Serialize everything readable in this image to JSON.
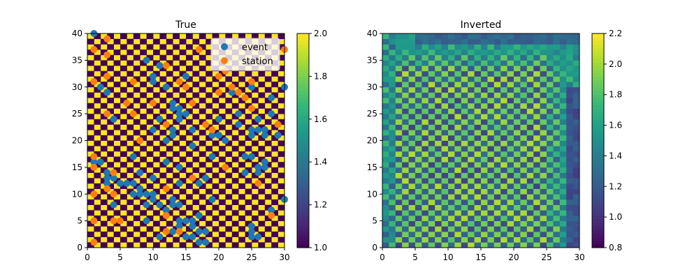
{
  "chart_data": [
    {
      "type": "heatmap",
      "title": "True",
      "xlim": [
        0,
        30
      ],
      "ylim": [
        0,
        40
      ],
      "xticks": [
        "0",
        "5",
        "10",
        "15",
        "20",
        "25",
        "30"
      ],
      "yticks": [
        "0",
        "5",
        "10",
        "15",
        "20",
        "25",
        "30",
        "35",
        "40"
      ],
      "grid": {
        "nx": 30,
        "ny": 40,
        "pattern": "checkerboard",
        "cell_size": 1,
        "values": [
          1.0,
          2.0
        ]
      },
      "colormap": "viridis",
      "colorbar": {
        "min": 1.0,
        "max": 2.0,
        "ticks": [
          "1.0",
          "1.2",
          "1.4",
          "1.6",
          "1.8",
          "2.0"
        ]
      },
      "legend": {
        "placement": "top-right",
        "entries": [
          "event",
          "station"
        ]
      },
      "series": [
        {
          "name": "event",
          "type": "scatter",
          "color": "#1f77b4",
          "points": [
            [
              1,
              40
            ],
            [
              2,
              30
            ],
            [
              3,
              29
            ],
            [
              3,
              13
            ],
            [
              3,
              14
            ],
            [
              4,
              24
            ],
            [
              4,
              13
            ],
            [
              2,
              16
            ],
            [
              1,
              16
            ],
            [
              3,
              12
            ],
            [
              4,
              8
            ],
            [
              5,
              12
            ],
            [
              6,
              12
            ],
            [
              7,
              10
            ],
            [
              7,
              12
            ],
            [
              8,
              14
            ],
            [
              8,
              10
            ],
            [
              8,
              11
            ],
            [
              9,
              35
            ],
            [
              9,
              10
            ],
            [
              9,
              8
            ],
            [
              10,
              31
            ],
            [
              10,
              32
            ],
            [
              10,
              22
            ],
            [
              10,
              13
            ],
            [
              10,
              9
            ],
            [
              10,
              10
            ],
            [
              11,
              34
            ],
            [
              11,
              24
            ],
            [
              11,
              2
            ],
            [
              11,
              8
            ],
            [
              12,
              30
            ],
            [
              12,
              16
            ],
            [
              12,
              6
            ],
            [
              12,
              7
            ],
            [
              13,
              22
            ],
            [
              13,
              26
            ],
            [
              13,
              27
            ],
            [
              13,
              21
            ],
            [
              13,
              8
            ],
            [
              13,
              9
            ],
            [
              13,
              3
            ],
            [
              14,
              24
            ],
            [
              14,
              26
            ],
            [
              14,
              25
            ],
            [
              14,
              15
            ],
            [
              14,
              12
            ],
            [
              14,
              5
            ],
            [
              14,
              4
            ],
            [
              14,
              8
            ],
            [
              15,
              25
            ],
            [
              15,
              32
            ],
            [
              15,
              5
            ],
            [
              15,
              2
            ],
            [
              16,
              22
            ],
            [
              16,
              19
            ],
            [
              16,
              5
            ],
            [
              16,
              4
            ],
            [
              16,
              2
            ],
            [
              17,
              12
            ],
            [
              17,
              6
            ],
            [
              17,
              3
            ],
            [
              17,
              1
            ],
            [
              18,
              1
            ],
            [
              18,
              3
            ],
            [
              19,
              9
            ],
            [
              19,
              21
            ],
            [
              19,
              17
            ],
            [
              20,
              24
            ],
            [
              21,
              20
            ],
            [
              21,
              15
            ],
            [
              22,
              29
            ],
            [
              23,
              25
            ],
            [
              23,
              23
            ],
            [
              24,
              14
            ],
            [
              24,
              17
            ],
            [
              24,
              28
            ],
            [
              25,
              22
            ],
            [
              25,
              21
            ],
            [
              25,
              17
            ],
            [
              25,
              4
            ],
            [
              25,
              2
            ],
            [
              25,
              3
            ],
            [
              26,
              24
            ],
            [
              26,
              22
            ],
            [
              26,
              15
            ],
            [
              26,
              14
            ],
            [
              26,
              2
            ],
            [
              27,
              22
            ],
            [
              27,
              21
            ],
            [
              27,
              16
            ],
            [
              27,
              15
            ],
            [
              28,
              28
            ],
            [
              28,
              7
            ],
            [
              28,
              25
            ],
            [
              29,
              21
            ],
            [
              30,
              30
            ],
            [
              30,
              9
            ],
            [
              7,
              17
            ],
            [
              20,
              21
            ],
            [
              12,
              20
            ],
            [
              18,
              13
            ],
            [
              25,
              30
            ],
            [
              9,
              5
            ]
          ]
        },
        {
          "name": "station",
          "type": "scatter",
          "color": "#ff7f0e",
          "points": [
            [
              1,
              37
            ],
            [
              1,
              31
            ],
            [
              1,
              17
            ],
            [
              1,
              15
            ],
            [
              1,
              10
            ],
            [
              1,
              5
            ],
            [
              1,
              1
            ],
            [
              3,
              39
            ],
            [
              3,
              36
            ],
            [
              3,
              32
            ],
            [
              3,
              25
            ],
            [
              3,
              11
            ],
            [
              4,
              14
            ],
            [
              4,
              10
            ],
            [
              4,
              5
            ],
            [
              5,
              5
            ],
            [
              6,
              27
            ],
            [
              7,
              31
            ],
            [
              7,
              25
            ],
            [
              8,
              20
            ],
            [
              10,
              27
            ],
            [
              12,
              34
            ],
            [
              12,
              23
            ],
            [
              12,
              11
            ],
            [
              12,
              6
            ],
            [
              12,
              3
            ],
            [
              14,
              31
            ],
            [
              14,
              3
            ],
            [
              15,
              30
            ],
            [
              16,
              27
            ],
            [
              17,
              37
            ],
            [
              18,
              23
            ],
            [
              19,
              22
            ],
            [
              20,
              29
            ],
            [
              20,
              32
            ],
            [
              21,
              33
            ],
            [
              21,
              15
            ],
            [
              22,
              30
            ],
            [
              23,
              29
            ],
            [
              24,
              28
            ],
            [
              25,
              31
            ],
            [
              25,
              26
            ],
            [
              26,
              12
            ],
            [
              28,
              6
            ],
            [
              29,
              23
            ],
            [
              30,
              37
            ],
            [
              16,
              13
            ]
          ]
        }
      ]
    },
    {
      "type": "heatmap",
      "title": "Inverted",
      "xlim": [
        0,
        30
      ],
      "ylim": [
        0,
        40
      ],
      "xticks": [
        "0",
        "5",
        "10",
        "15",
        "20",
        "25",
        "30"
      ],
      "yticks": [
        "0",
        "5",
        "10",
        "15",
        "20",
        "25",
        "30",
        "35",
        "40"
      ],
      "grid": {
        "nx": 30,
        "ny": 40,
        "pattern": "blurred checkerboard (recovered in center, smeared near top and right edges)",
        "cell_size": 1,
        "value_range": [
          0.8,
          2.2
        ]
      },
      "colormap": "viridis",
      "colorbar": {
        "min": 0.8,
        "max": 2.2,
        "ticks": [
          "0.8",
          "1.0",
          "1.2",
          "1.4",
          "1.6",
          "1.8",
          "2.0",
          "2.2"
        ]
      }
    }
  ]
}
